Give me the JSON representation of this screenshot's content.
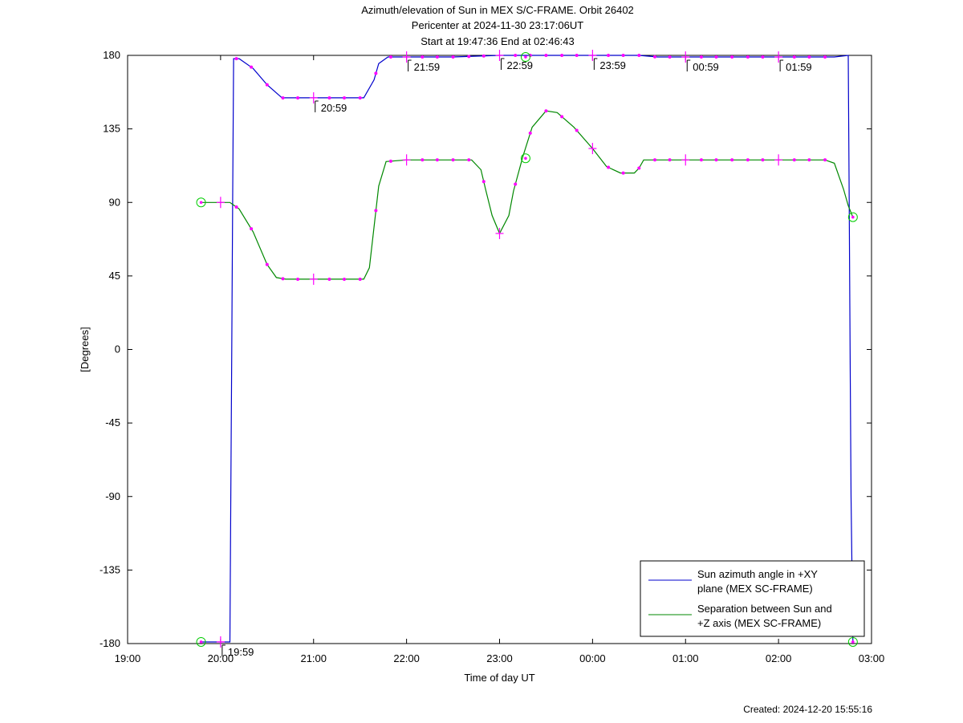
{
  "header": {
    "title": "Azimuth/elevation of Sun in MEX S/C-FRAME.  Orbit 26402",
    "subtitle_1": "Pericenter at 2024-11-30 23:17:06UT",
    "subtitle_2": "Start at 19:47:36 End at 02:46:43"
  },
  "footer": {
    "created": "Created: 2024-12-20 15:55:16"
  },
  "chart_data": {
    "type": "line",
    "title": "Azimuth/elevation of Sun in MEX S/C-FRAME.  Orbit 26402",
    "xlabel": "Time of day UT",
    "ylabel": "[Degrees]",
    "x_unit": "hours since 19:00 UT",
    "xlim": [
      0,
      8
    ],
    "ylim": [
      -180,
      180
    ],
    "x_ticks": [
      {
        "v": 0,
        "label": "19:00"
      },
      {
        "v": 1,
        "label": "20:00"
      },
      {
        "v": 2,
        "label": "21:00"
      },
      {
        "v": 3,
        "label": "22:00"
      },
      {
        "v": 4,
        "label": "23:00"
      },
      {
        "v": 5,
        "label": "00:00"
      },
      {
        "v": 6,
        "label": "01:00"
      },
      {
        "v": 7,
        "label": "02:00"
      },
      {
        "v": 8,
        "label": "03:00"
      }
    ],
    "y_ticks": [
      180,
      135,
      90,
      45,
      0,
      -45,
      -90,
      -135,
      -180
    ],
    "grid": false,
    "legend_position": "bottom-right",
    "series": [
      {
        "name": "Sun azimuth angle in +XY plane (MEX SC-FRAME)",
        "color": "#0000cc",
        "points": [
          [
            0.79,
            -179
          ],
          [
            1.1,
            -179
          ],
          [
            1.11,
            -90
          ],
          [
            1.12,
            0
          ],
          [
            1.13,
            90
          ],
          [
            1.14,
            178
          ],
          [
            1.2,
            178
          ],
          [
            1.35,
            172
          ],
          [
            1.5,
            162
          ],
          [
            1.66,
            154
          ],
          [
            2.0,
            154
          ],
          [
            2.54,
            154
          ],
          [
            2.65,
            165
          ],
          [
            2.7,
            175
          ],
          [
            2.8,
            179
          ],
          [
            3.0,
            179
          ],
          [
            3.5,
            179
          ],
          [
            4.0,
            180
          ],
          [
            4.5,
            180
          ],
          [
            5.0,
            180
          ],
          [
            5.5,
            180
          ],
          [
            5.7,
            179
          ],
          [
            6.0,
            179
          ],
          [
            6.5,
            179
          ],
          [
            7.0,
            179
          ],
          [
            7.6,
            179
          ],
          [
            7.75,
            180
          ],
          [
            7.76,
            90
          ],
          [
            7.77,
            0
          ],
          [
            7.78,
            -90
          ],
          [
            7.8,
            -179
          ]
        ],
        "time_labels": [
          {
            "x": 1.0,
            "y": -179,
            "label": "19:59"
          },
          {
            "x": 2.0,
            "y": 154,
            "label": "20:59"
          },
          {
            "x": 3.0,
            "y": 179,
            "label": "21:59"
          },
          {
            "x": 4.0,
            "y": 180,
            "label": "22:59"
          },
          {
            "x": 5.0,
            "y": 180,
            "label": "23:59"
          },
          {
            "x": 6.0,
            "y": 179,
            "label": "00:59"
          },
          {
            "x": 7.0,
            "y": 179,
            "label": "01:59"
          }
        ]
      },
      {
        "name": "Separation between Sun and +Z axis (MEX SC-FRAME)",
        "color": "#008800",
        "points": [
          [
            0.79,
            90
          ],
          [
            1.1,
            90
          ],
          [
            1.2,
            86
          ],
          [
            1.35,
            72
          ],
          [
            1.5,
            52
          ],
          [
            1.6,
            44
          ],
          [
            1.7,
            43
          ],
          [
            2.0,
            43
          ],
          [
            2.54,
            43
          ],
          [
            2.6,
            50
          ],
          [
            2.65,
            75
          ],
          [
            2.7,
            100
          ],
          [
            2.78,
            115
          ],
          [
            3.0,
            116
          ],
          [
            3.5,
            116
          ],
          [
            3.7,
            116
          ],
          [
            3.8,
            110
          ],
          [
            3.85,
            98
          ],
          [
            3.92,
            82
          ],
          [
            4.0,
            71
          ],
          [
            4.1,
            82
          ],
          [
            4.15,
            97
          ],
          [
            4.25,
            118
          ],
          [
            4.35,
            136
          ],
          [
            4.5,
            146
          ],
          [
            4.62,
            145
          ],
          [
            4.8,
            136
          ],
          [
            5.0,
            123
          ],
          [
            5.15,
            112
          ],
          [
            5.3,
            108
          ],
          [
            5.45,
            108
          ],
          [
            5.5,
            111
          ],
          [
            5.55,
            116
          ],
          [
            6.0,
            116
          ],
          [
            6.5,
            116
          ],
          [
            7.0,
            116
          ],
          [
            7.5,
            116
          ],
          [
            7.6,
            114
          ],
          [
            7.7,
            98
          ],
          [
            7.75,
            88
          ],
          [
            7.8,
            81
          ]
        ]
      }
    ],
    "markers": {
      "dots_color": "#ff00ff",
      "green_circles": [
        [
          0.79,
          90
        ],
        [
          0.79,
          -179
        ],
        [
          4.28,
          179
        ],
        [
          4.28,
          117
        ],
        [
          7.8,
          81
        ],
        [
          7.8,
          -179
        ]
      ],
      "plus_ticks": [
        [
          1.0,
          -179
        ],
        [
          2.0,
          154
        ],
        [
          3.0,
          179
        ],
        [
          4.0,
          180
        ],
        [
          5.0,
          180
        ],
        [
          6.0,
          179
        ],
        [
          7.0,
          179
        ],
        [
          1.0,
          90
        ],
        [
          2.0,
          43
        ],
        [
          3.0,
          116
        ],
        [
          4.0,
          71
        ],
        [
          5.0,
          123
        ],
        [
          6.0,
          116
        ],
        [
          7.0,
          116
        ]
      ],
      "dot_x_values": [
        1.17,
        1.33,
        1.5,
        1.67,
        1.83,
        2.17,
        2.33,
        2.5,
        2.67,
        2.83,
        3.17,
        3.33,
        3.5,
        3.67,
        3.83,
        4.17,
        4.33,
        4.5,
        4.67,
        4.83,
        5.17,
        5.33,
        5.5,
        5.67,
        5.83,
        6.17,
        6.33,
        6.5,
        6.67,
        6.83,
        7.17,
        7.33,
        7.5
      ]
    }
  }
}
